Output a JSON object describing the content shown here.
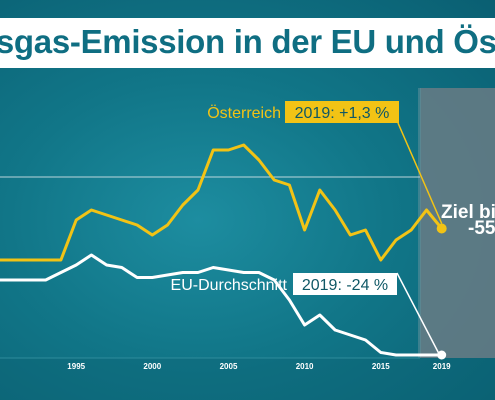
{
  "title": "usgas-Emission in der EU und Öster",
  "target": {
    "line1": "Ziel bis",
    "line2": "-55",
    "year": "2019"
  },
  "colors": {
    "austria": "#f2c315",
    "eu": "#ffffff",
    "background": "#117688",
    "title_text": "#0f6e82",
    "target_panel": "#6d7d85"
  },
  "chart_data": {
    "type": "line",
    "title": "usgas-Emission in der EU und Öster",
    "xlabel": "",
    "ylabel": "",
    "grid": false,
    "xlim": [
      1990,
      2022.5
    ],
    "ylim": [
      -33,
      35
    ],
    "x_ticks": [
      "1995",
      "2000",
      "2005",
      "2010",
      "2015",
      "2019"
    ],
    "x": [
      1990,
      1991,
      1992,
      1993,
      1994,
      1995,
      1996,
      1997,
      1998,
      1999,
      2000,
      2001,
      2002,
      2003,
      2004,
      2005,
      2006,
      2007,
      2008,
      2009,
      2010,
      2011,
      2012,
      2013,
      2014,
      2015,
      2016,
      2017,
      2018,
      2019
    ],
    "series": [
      {
        "name": "Österreich",
        "end_label": "2019: +1,3 %",
        "values": [
          -5,
          -5,
          -5,
          -5,
          -5,
          3,
          5,
          4,
          3,
          2,
          0,
          2,
          6,
          9,
          17,
          17,
          18,
          15,
          11,
          10,
          1,
          9,
          5,
          0,
          1,
          -5,
          -1,
          1,
          5,
          1.3
        ]
      },
      {
        "name": "EU-Durchschnitt",
        "end_label": "2019: -24 %",
        "values": [
          -9,
          -9,
          -9,
          -9,
          -7.5,
          -6,
          -4,
          -6,
          -6.5,
          -8.5,
          -8.5,
          -8,
          -7.5,
          -7.5,
          -6.5,
          -7,
          -7.5,
          -7.5,
          -9,
          -13,
          -18,
          -16,
          -19,
          -20,
          -21,
          -23.5,
          -24,
          -24,
          -24,
          -24
        ]
      }
    ]
  }
}
